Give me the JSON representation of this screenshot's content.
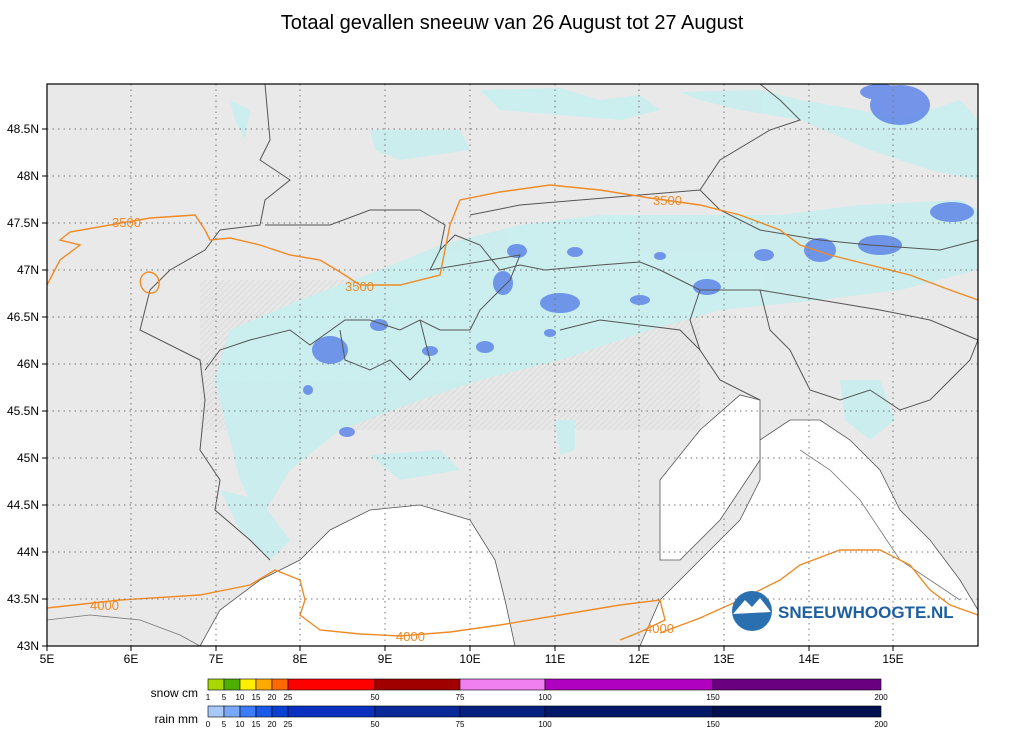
{
  "title": "Totaal gevallen sneeuw van 26 August tot 27 August",
  "map": {
    "lon_ticks": [
      "5E",
      "6E",
      "7E",
      "8E",
      "9E",
      "10E",
      "11E",
      "12E",
      "13E",
      "14E",
      "15E"
    ],
    "lat_ticks": [
      "43N",
      "43.5N",
      "44N",
      "44.5N",
      "45N",
      "45.5N",
      "46N",
      "46.5N",
      "47N",
      "47.5N",
      "48N",
      "48.5N"
    ],
    "contour_labels": [
      "3500",
      "3500",
      "3500",
      "4000",
      "4000",
      "4000"
    ],
    "logo_text": "SNEEUWHOOGTE.NL"
  },
  "legend": {
    "snow": {
      "label": "snow cm",
      "ticks": [
        "1",
        "5",
        "10",
        "15",
        "20",
        "25",
        "50",
        "75",
        "100",
        "150",
        "200"
      ],
      "colors": [
        "#a8d800",
        "#4db000",
        "#ffee00",
        "#ffaa00",
        "#ff6a00",
        "#ff0000",
        "#a00000",
        "#f080f0",
        "#b000c0",
        "#6a0080"
      ]
    },
    "rain": {
      "label": "rain mm",
      "ticks": [
        "0",
        "5",
        "10",
        "15",
        "20",
        "25",
        "50",
        "75",
        "100",
        "150",
        "200"
      ],
      "colors": [
        "#a8c8f8",
        "#7aa8f8",
        "#3d7cf8",
        "#1a5ae8",
        "#0a40d0",
        "#0a30c0",
        "#082898",
        "#062080",
        "#041868",
        "#031050"
      ]
    }
  }
}
